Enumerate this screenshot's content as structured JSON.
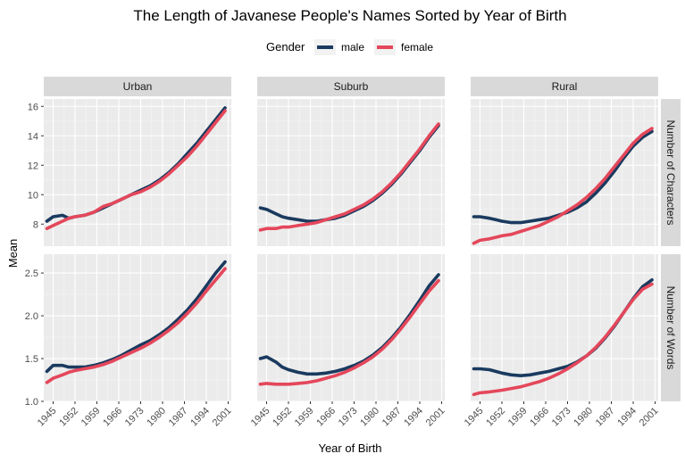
{
  "chart_data": {
    "type": "line",
    "title": "The Length of Javanese People's Names Sorted by Year of Birth",
    "xlabel": "Year of Birth",
    "ylabel": "Mean",
    "legend": {
      "title": "Gender",
      "position": "top",
      "entries": [
        {
          "name": "male",
          "color": "#1a3a5f"
        },
        {
          "name": "female",
          "color": "#e4475b"
        }
      ]
    },
    "grid": true,
    "panel_background": "#ebebeb",
    "strip_background": "#d9d9d9",
    "columns": [
      "Urban",
      "Suburb",
      "Rural"
    ],
    "rows": [
      "Number of Characters",
      "Number of Words"
    ],
    "xlim": [
      1942,
      2002
    ],
    "x_ticks": [
      1945,
      1952,
      1959,
      1966,
      1973,
      1980,
      1987,
      1994,
      2001
    ],
    "x_tick_labels": [
      "1945",
      "1952",
      "1959",
      "1966",
      "1973",
      "1980",
      "1987",
      "1994",
      "2001"
    ],
    "row_axes": [
      {
        "ylim": [
          6.5,
          16.5
        ],
        "ticks": [
          8,
          10,
          12,
          14,
          16
        ],
        "tick_labels": [
          "8",
          "10",
          "12",
          "14",
          "16"
        ]
      },
      {
        "ylim": [
          1.0,
          2.72
        ],
        "ticks": [
          1.0,
          1.5,
          2.0,
          2.5
        ],
        "tick_labels": [
          "1.0",
          "1.5",
          "2.0",
          "2.5"
        ]
      }
    ],
    "series": [
      {
        "row": 0,
        "col": 0,
        "name": "male",
        "x": [
          1943,
          1945,
          1948,
          1950,
          1952,
          1955,
          1958,
          1961,
          1964,
          1967,
          1970,
          1973,
          1976,
          1979,
          1982,
          1985,
          1988,
          1991,
          1994,
          1997,
          2000
        ],
        "values": [
          8.2,
          8.5,
          8.6,
          8.4,
          8.5,
          8.6,
          8.8,
          9.1,
          9.4,
          9.7,
          10.0,
          10.3,
          10.6,
          11.0,
          11.5,
          12.1,
          12.8,
          13.5,
          14.3,
          15.1,
          15.9
        ]
      },
      {
        "row": 0,
        "col": 0,
        "name": "female",
        "x": [
          1943,
          1945,
          1948,
          1950,
          1952,
          1955,
          1958,
          1961,
          1964,
          1967,
          1970,
          1973,
          1976,
          1979,
          1982,
          1985,
          1988,
          1991,
          1994,
          1997,
          2000
        ],
        "values": [
          7.7,
          7.9,
          8.2,
          8.4,
          8.5,
          8.6,
          8.8,
          9.2,
          9.4,
          9.7,
          10.0,
          10.2,
          10.5,
          10.9,
          11.4,
          12.0,
          12.6,
          13.3,
          14.1,
          14.9,
          15.7
        ]
      },
      {
        "row": 0,
        "col": 1,
        "name": "male",
        "x": [
          1943,
          1945,
          1948,
          1950,
          1952,
          1955,
          1958,
          1961,
          1964,
          1967,
          1970,
          1973,
          1976,
          1979,
          1982,
          1985,
          1988,
          1991,
          1994,
          1997,
          2000
        ],
        "values": [
          9.1,
          9.0,
          8.7,
          8.5,
          8.4,
          8.3,
          8.2,
          8.2,
          8.3,
          8.4,
          8.6,
          8.9,
          9.2,
          9.6,
          10.1,
          10.7,
          11.4,
          12.2,
          13.0,
          13.9,
          14.7
        ]
      },
      {
        "row": 0,
        "col": 1,
        "name": "female",
        "x": [
          1943,
          1945,
          1948,
          1950,
          1952,
          1955,
          1958,
          1961,
          1964,
          1967,
          1970,
          1973,
          1976,
          1979,
          1982,
          1985,
          1988,
          1991,
          1994,
          1997,
          2000
        ],
        "values": [
          7.6,
          7.7,
          7.7,
          7.8,
          7.8,
          7.9,
          8.0,
          8.1,
          8.3,
          8.5,
          8.7,
          9.0,
          9.3,
          9.7,
          10.2,
          10.8,
          11.5,
          12.3,
          13.1,
          14.0,
          14.8
        ]
      },
      {
        "row": 0,
        "col": 2,
        "name": "male",
        "x": [
          1943,
          1945,
          1948,
          1950,
          1952,
          1955,
          1958,
          1961,
          1964,
          1967,
          1970,
          1973,
          1976,
          1979,
          1982,
          1985,
          1988,
          1991,
          1994,
          1997,
          2000
        ],
        "values": [
          8.5,
          8.5,
          8.4,
          8.3,
          8.2,
          8.1,
          8.1,
          8.2,
          8.3,
          8.4,
          8.6,
          8.8,
          9.1,
          9.5,
          10.1,
          10.8,
          11.6,
          12.5,
          13.3,
          13.9,
          14.3
        ]
      },
      {
        "row": 0,
        "col": 2,
        "name": "female",
        "x": [
          1943,
          1945,
          1948,
          1950,
          1952,
          1955,
          1958,
          1961,
          1964,
          1967,
          1970,
          1973,
          1976,
          1979,
          1982,
          1985,
          1988,
          1991,
          1994,
          1997,
          2000
        ],
        "values": [
          6.7,
          6.9,
          7.0,
          7.1,
          7.2,
          7.3,
          7.5,
          7.7,
          7.9,
          8.2,
          8.5,
          8.9,
          9.3,
          9.8,
          10.4,
          11.1,
          11.9,
          12.7,
          13.5,
          14.1,
          14.5
        ]
      },
      {
        "row": 1,
        "col": 0,
        "name": "male",
        "x": [
          1943,
          1945,
          1948,
          1950,
          1952,
          1955,
          1958,
          1961,
          1964,
          1967,
          1970,
          1973,
          1976,
          1979,
          1982,
          1985,
          1988,
          1991,
          1994,
          1997,
          2000
        ],
        "values": [
          1.35,
          1.42,
          1.42,
          1.4,
          1.4,
          1.4,
          1.42,
          1.45,
          1.49,
          1.54,
          1.6,
          1.66,
          1.71,
          1.78,
          1.86,
          1.96,
          2.07,
          2.2,
          2.35,
          2.5,
          2.63
        ]
      },
      {
        "row": 1,
        "col": 0,
        "name": "female",
        "x": [
          1943,
          1945,
          1948,
          1950,
          1952,
          1955,
          1958,
          1961,
          1964,
          1967,
          1970,
          1973,
          1976,
          1979,
          1982,
          1985,
          1988,
          1991,
          1994,
          1997,
          2000
        ],
        "values": [
          1.22,
          1.27,
          1.31,
          1.34,
          1.36,
          1.38,
          1.4,
          1.43,
          1.47,
          1.52,
          1.57,
          1.62,
          1.68,
          1.75,
          1.83,
          1.92,
          2.03,
          2.15,
          2.29,
          2.42,
          2.55
        ]
      },
      {
        "row": 1,
        "col": 1,
        "name": "male",
        "x": [
          1943,
          1945,
          1948,
          1950,
          1952,
          1955,
          1958,
          1961,
          1964,
          1967,
          1970,
          1973,
          1976,
          1979,
          1982,
          1985,
          1988,
          1991,
          1994,
          1997,
          2000
        ],
        "values": [
          1.5,
          1.52,
          1.46,
          1.4,
          1.37,
          1.34,
          1.32,
          1.32,
          1.33,
          1.35,
          1.38,
          1.42,
          1.47,
          1.54,
          1.63,
          1.74,
          1.87,
          2.02,
          2.18,
          2.35,
          2.48
        ]
      },
      {
        "row": 1,
        "col": 1,
        "name": "female",
        "x": [
          1943,
          1945,
          1948,
          1950,
          1952,
          1955,
          1958,
          1961,
          1964,
          1967,
          1970,
          1973,
          1976,
          1979,
          1982,
          1985,
          1988,
          1991,
          1994,
          1997,
          2000
        ],
        "values": [
          1.2,
          1.21,
          1.2,
          1.2,
          1.2,
          1.21,
          1.22,
          1.24,
          1.27,
          1.3,
          1.34,
          1.39,
          1.45,
          1.52,
          1.61,
          1.72,
          1.85,
          1.99,
          2.14,
          2.29,
          2.41
        ]
      },
      {
        "row": 1,
        "col": 2,
        "name": "male",
        "x": [
          1943,
          1945,
          1948,
          1950,
          1952,
          1955,
          1958,
          1961,
          1964,
          1967,
          1970,
          1973,
          1976,
          1979,
          1982,
          1985,
          1988,
          1991,
          1994,
          1997,
          2000
        ],
        "values": [
          1.38,
          1.38,
          1.37,
          1.35,
          1.33,
          1.31,
          1.3,
          1.31,
          1.33,
          1.35,
          1.38,
          1.41,
          1.46,
          1.53,
          1.62,
          1.74,
          1.88,
          2.04,
          2.2,
          2.34,
          2.42
        ]
      },
      {
        "row": 1,
        "col": 2,
        "name": "female",
        "x": [
          1943,
          1945,
          1948,
          1950,
          1952,
          1955,
          1958,
          1961,
          1964,
          1967,
          1970,
          1973,
          1976,
          1979,
          1982,
          1985,
          1988,
          1991,
          1994,
          1997,
          2000
        ],
        "values": [
          1.08,
          1.1,
          1.11,
          1.12,
          1.13,
          1.15,
          1.17,
          1.2,
          1.23,
          1.27,
          1.32,
          1.38,
          1.45,
          1.53,
          1.63,
          1.75,
          1.89,
          2.04,
          2.19,
          2.31,
          2.37
        ]
      }
    ]
  }
}
